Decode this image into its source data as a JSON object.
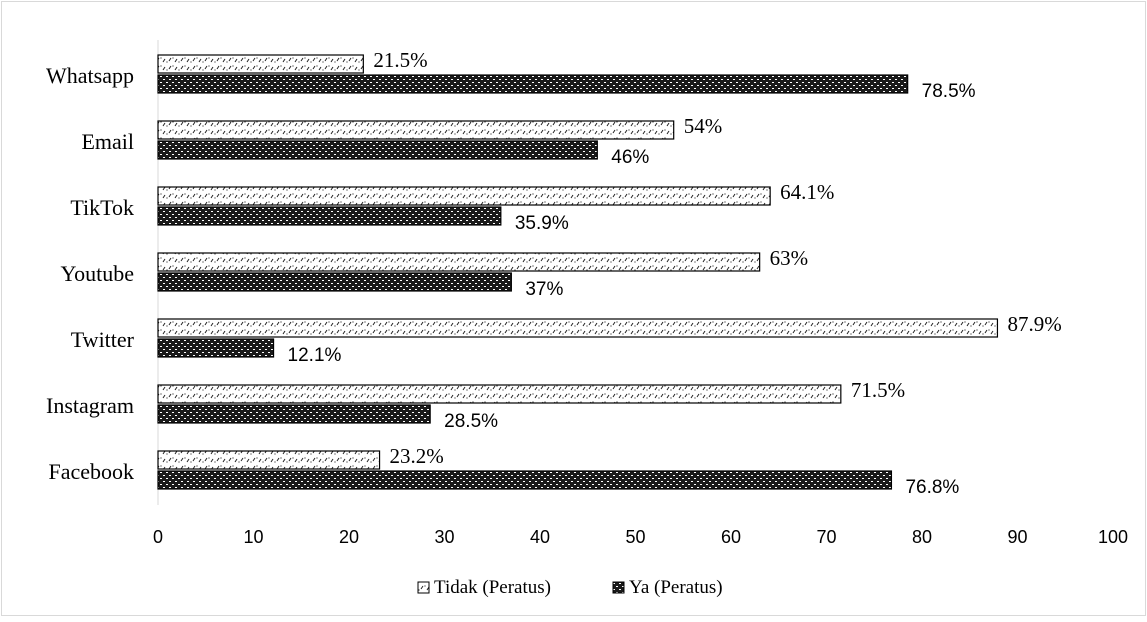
{
  "chart_data": {
    "type": "bar",
    "orientation": "horizontal",
    "categories": [
      "Whatsapp",
      "Email",
      "TikTok",
      "Youtube",
      "Twitter",
      "Instagram",
      "Facebook"
    ],
    "series": [
      {
        "name": "Tidak (Peratus)",
        "values": [
          21.5,
          54,
          64.1,
          63,
          87.9,
          71.5,
          23.2
        ],
        "labels": [
          "21.5%",
          "54%",
          "64.1%",
          "63%",
          "87.9%",
          "71.5%",
          "23.2%"
        ],
        "pattern": "light-dotted"
      },
      {
        "name": "Ya (Peratus)",
        "values": [
          78.5,
          46,
          35.9,
          37,
          12.1,
          28.5,
          76.8
        ],
        "labels": [
          "78.5%",
          "46%",
          "35.9%",
          "37%",
          "12.1%",
          "28.5%",
          "76.8%"
        ],
        "pattern": "dark-checkered"
      }
    ],
    "xticks": [
      "0",
      "10",
      "20",
      "30",
      "40",
      "50",
      "60",
      "70",
      "80",
      "90",
      "100"
    ],
    "xlim": [
      0,
      100
    ],
    "title": "",
    "xlabel": "",
    "ylabel": "",
    "grid": false,
    "legend_position": "bottom",
    "colors": {
      "bar_outline": "#000000",
      "dark_fill": "#1a1a1a",
      "light_fill": "#ffffff",
      "frame": "#d9d9d9"
    }
  }
}
